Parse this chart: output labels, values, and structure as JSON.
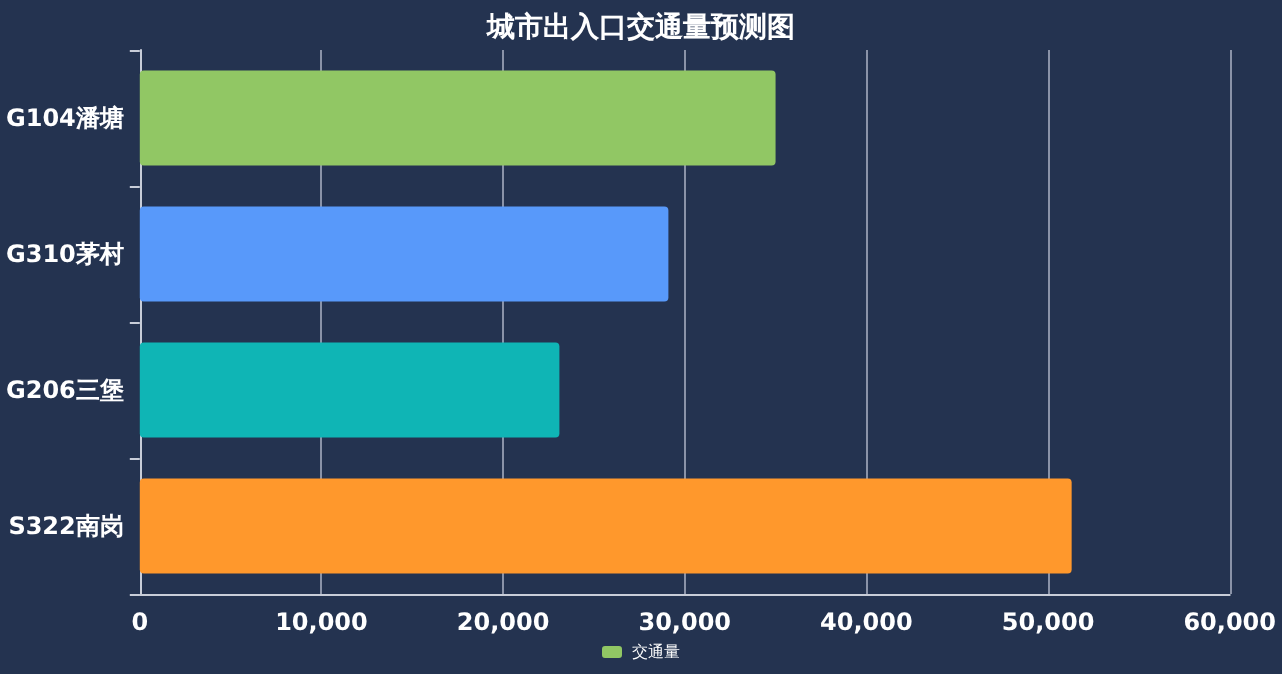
{
  "chart_data": {
    "type": "bar",
    "title": "城市出入口交通量预测图",
    "orientation": "horizontal",
    "categories": [
      "G104潘塘",
      "G310茅村",
      "G206三堡",
      "S322南岗"
    ],
    "series": [
      {
        "name": "交通量",
        "color": "#91c764",
        "colors": [
          "#91c764",
          "#5899fa",
          "#0fb5b5",
          "#ff982c"
        ],
        "values": [
          35000,
          29100,
          23100,
          51300
        ]
      }
    ],
    "xlim": [
      0,
      60000
    ],
    "xticks": [
      {
        "value": 0,
        "label": "0"
      },
      {
        "value": 10000,
        "label": "10,000"
      },
      {
        "value": 20000,
        "label": "20,000"
      },
      {
        "value": 30000,
        "label": "30,000"
      },
      {
        "value": 40000,
        "label": "40,000"
      },
      {
        "value": 50000,
        "label": "50,000"
      },
      {
        "value": 60000,
        "label": "60,000"
      }
    ],
    "grid": "x",
    "legend": "bottom"
  }
}
